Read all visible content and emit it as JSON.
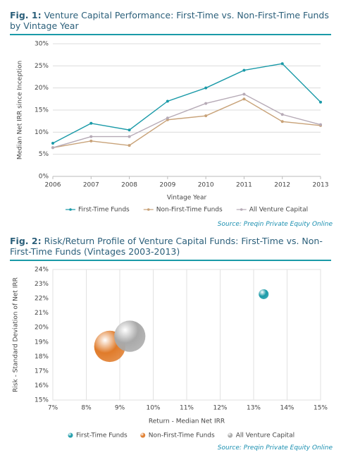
{
  "chart_data": [
    {
      "type": "line",
      "figure_label": "Fig. 1:",
      "title": "Venture Capital Performance: First-Time vs. Non-First-Time Funds by Vintage Year",
      "categories": [
        "2006",
        "2007",
        "2008",
        "2009",
        "2010",
        "2011",
        "2012",
        "2013"
      ],
      "series": [
        {
          "name": "First-Time Funds",
          "color": "#1a9aa8",
          "values": [
            7.5,
            12,
            10.5,
            17,
            20,
            24,
            25.5,
            16.8
          ]
        },
        {
          "name": "Non-First-Time Funds",
          "color": "#c8a278",
          "values": [
            6.5,
            8,
            7,
            12.8,
            13.7,
            17.5,
            12.4,
            11.5
          ]
        },
        {
          "name": "All Venture Capital",
          "color": "#b6aab6",
          "values": [
            6.5,
            9,
            9,
            13.2,
            16.5,
            18.6,
            14,
            11.7
          ]
        }
      ],
      "ylim": [
        0,
        30
      ],
      "yticks": [
        {
          "value": 0,
          "label": "0%"
        },
        {
          "value": 5,
          "label": "5%"
        },
        {
          "value": 10,
          "label": "10%"
        },
        {
          "value": 15,
          "label": "15%"
        },
        {
          "value": 20,
          "label": "20%"
        },
        {
          "value": 25,
          "label": "25%"
        },
        {
          "value": 30,
          "label": "30%"
        }
      ],
      "y_label": "Median Net IRR since Inception",
      "x_label": "Vintage Year",
      "grid": "y",
      "source": "Source: Preqin Private Equity Online"
    },
    {
      "type": "bubble",
      "figure_label": "Fig. 2:",
      "title": "Risk/Return Profile of Venture Capital Funds: First-Time vs. Non-First-Time Funds (Vintages 2003-2013)",
      "series": [
        {
          "name": "First-Time Funds",
          "color": "#1a9aa8",
          "x": [
            13.3
          ],
          "values": [
            22.3
          ],
          "sizes": [
            1
          ]
        },
        {
          "name": "Non-First-Time Funds",
          "color": "#e07b2a",
          "x": [
            8.7
          ],
          "values": [
            18.7
          ],
          "sizes": [
            10
          ]
        },
        {
          "name": "All Venture Capital",
          "color": "#a9a9a9",
          "x": [
            9.3
          ],
          "values": [
            19.4
          ],
          "sizes": [
            10
          ]
        }
      ],
      "xlim": [
        7,
        15
      ],
      "xticks": [
        {
          "value": 7,
          "label": "7%"
        },
        {
          "value": 8,
          "label": "8%"
        },
        {
          "value": 9,
          "label": "9%"
        },
        {
          "value": 10,
          "label": "10%"
        },
        {
          "value": 11,
          "label": "11%"
        },
        {
          "value": 12,
          "label": "12%"
        },
        {
          "value": 13,
          "label": "13%"
        },
        {
          "value": 14,
          "label": "14%"
        },
        {
          "value": 15,
          "label": "15%"
        }
      ],
      "ylim": [
        15,
        24
      ],
      "yticks": [
        {
          "value": 15,
          "label": "15%"
        },
        {
          "value": 16,
          "label": "16%"
        },
        {
          "value": 17,
          "label": "17%"
        },
        {
          "value": 18,
          "label": "18%"
        },
        {
          "value": 19,
          "label": "19%"
        },
        {
          "value": 20,
          "label": "20%"
        },
        {
          "value": 21,
          "label": "21%"
        },
        {
          "value": 22,
          "label": "22%"
        },
        {
          "value": 23,
          "label": "23%"
        },
        {
          "value": 24,
          "label": "24%"
        }
      ],
      "y_label": "Risk - Standard Deviation of Net IRR",
      "x_label": "Return - Median Net IRR",
      "grid": "x",
      "source": "Source: Preqin Private Equity Online"
    }
  ]
}
